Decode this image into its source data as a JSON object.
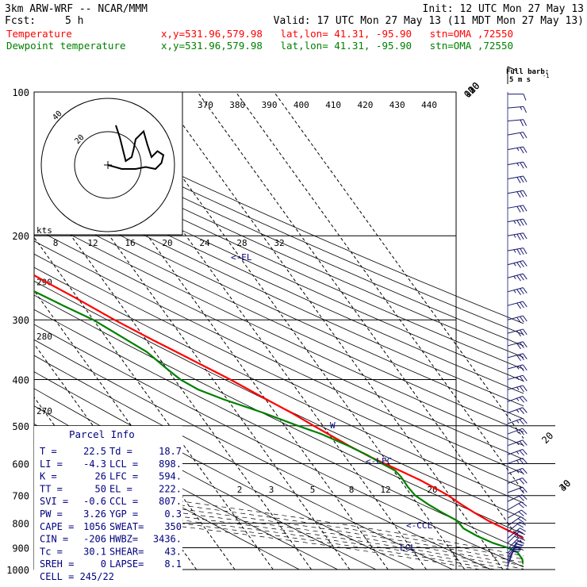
{
  "header": {
    "title": "3km ARW-WRF -- NCAR/MMM",
    "init": "Init: 12 UTC Mon 27 May 13",
    "fcst_label": "Fcst:",
    "fcst_value": "5 h",
    "valid": "Valid: 17 UTC Mon 27 May 13 (11 MDT Mon 27 May 13)"
  },
  "fields": [
    {
      "name": "Temperature",
      "info": "x,y=531.96,579.98   lat,lon= 41.31, -95.90   stn=OMA ,72550",
      "color": "#ff0000"
    },
    {
      "name": "Dewpoint temperature",
      "info": "x,y=531.96,579.98   lat,lon= 41.31, -95.90   stn=OMA ,72550",
      "color": "#008000"
    }
  ],
  "wind_legend": {
    "full_barb": "Full barb:",
    "units": "5 m s",
    "exponent": "-1"
  },
  "hodograph": {
    "units": "kts",
    "ring_labels": [
      "20",
      "40"
    ]
  },
  "parcel": {
    "title": "Parcel Info",
    "rows": [
      [
        "T   =",
        "22.5",
        "Td  =",
        "18.7"
      ],
      [
        "LI  =",
        "-4.3",
        "LCL =",
        "898."
      ],
      [
        "K   =",
        "26",
        "LFC =",
        "594."
      ],
      [
        "TT  =",
        "50",
        "EL  =",
        "222."
      ],
      [
        "SVI =",
        "-0.6",
        "CCL =",
        "807."
      ],
      [
        "PW  =",
        "3.26",
        "YGP =",
        "0.3"
      ],
      [
        "CAPE =",
        "1056",
        "SWEAT=",
        "350"
      ],
      [
        "CIN  =",
        "-206",
        "HWBZ=",
        "3436."
      ],
      [
        "Tc  =",
        "30.1",
        "SHEAR=",
        "43."
      ],
      [
        "SREH =",
        "0",
        "LAPSE=",
        "8.1"
      ]
    ],
    "cell": "CELL = 245/22"
  },
  "level_labels": {
    "el": "EL",
    "lfc": "LFC",
    "lcl": "LCL",
    "ccl": "CCL",
    "w": "W"
  },
  "chart_data": {
    "type": "line",
    "title": "",
    "xlabel": "",
    "ylabel": "",
    "y_scale": "log",
    "ylim": [
      1000,
      100
    ],
    "y_ticks": [
      100,
      200,
      300,
      400,
      500,
      600,
      700,
      800,
      900,
      1000
    ],
    "isotherms": [
      -80,
      -70,
      -60,
      -50,
      -40,
      -30,
      -20,
      -10,
      0,
      10,
      20,
      30,
      40
    ],
    "theta_labels": [
      {
        "p": 250,
        "v": "290"
      },
      {
        "p": 325,
        "v": "280"
      },
      {
        "p": 465,
        "v": "270"
      }
    ],
    "theta_e_labels": [
      "370",
      "380",
      "390",
      "400",
      "410",
      "420",
      "430",
      "440"
    ],
    "mixing_ratio_upper": [
      "8",
      "12",
      "16",
      "20",
      "24",
      "28",
      "32"
    ],
    "mixing_ratio_lower": [
      "2",
      "3",
      "5",
      "8",
      "12",
      "20"
    ],
    "series": [
      {
        "name": "Temperature",
        "color": "#ff0000",
        "points": [
          [
            1000,
            30.1
          ],
          [
            970,
            26.0
          ],
          [
            940,
            24.2
          ],
          [
            910,
            23.3
          ],
          [
            880,
            22.4
          ],
          [
            850,
            20.6
          ],
          [
            820,
            18.0
          ],
          [
            790,
            15.3
          ],
          [
            760,
            13.2
          ],
          [
            730,
            11.3
          ],
          [
            700,
            9.6
          ],
          [
            680,
            8.0
          ],
          [
            650,
            5.2
          ],
          [
            620,
            1.6
          ],
          [
            600,
            -1.0
          ],
          [
            580,
            -3.6
          ],
          [
            550,
            -7.0
          ],
          [
            520,
            -10.2
          ],
          [
            500,
            -12.4
          ],
          [
            470,
            -15.7
          ],
          [
            440,
            -19.8
          ],
          [
            400,
            -25.5
          ],
          [
            380,
            -28.9
          ],
          [
            350,
            -34.4
          ],
          [
            330,
            -38.4
          ],
          [
            300,
            -44.5
          ],
          [
            270,
            -50.5
          ],
          [
            250,
            -55.2
          ],
          [
            230,
            -60.0
          ],
          [
            215,
            -62.9
          ],
          [
            200,
            -63.2
          ],
          [
            190,
            -61.8
          ],
          [
            180,
            -62.5
          ],
          [
            165,
            -64.6
          ],
          [
            150,
            -66.5
          ],
          [
            140,
            -67.3
          ],
          [
            130,
            -70.5
          ],
          [
            120,
            -73.8
          ],
          [
            110,
            -77.2
          ],
          [
            100,
            -80.6
          ]
        ]
      },
      {
        "name": "Dewpoint temperature",
        "color": "#008000",
        "points": [
          [
            975,
            16.3
          ],
          [
            950,
            17.0
          ],
          [
            920,
            17.0
          ],
          [
            900,
            15.3
          ],
          [
            880,
            12.4
          ],
          [
            850,
            9.5
          ],
          [
            820,
            7.4
          ],
          [
            790,
            7.2
          ],
          [
            760,
            4.8
          ],
          [
            730,
            2.7
          ],
          [
            700,
            1.0
          ],
          [
            670,
            0.7
          ],
          [
            640,
            0.8
          ],
          [
            620,
            0.4
          ],
          [
            600,
            -1.7
          ],
          [
            575,
            -4.0
          ],
          [
            550,
            -7.2
          ],
          [
            520,
            -12.0
          ],
          [
            500,
            -16.5
          ],
          [
            470,
            -23.0
          ],
          [
            440,
            -31.0
          ],
          [
            420,
            -35.7
          ],
          [
            400,
            -38.5
          ],
          [
            380,
            -40.0
          ],
          [
            350,
            -42.1
          ],
          [
            320,
            -46.7
          ],
          [
            300,
            -50.0
          ],
          [
            280,
            -55.2
          ],
          [
            260,
            -60.5
          ],
          [
            250,
            -63.5
          ],
          [
            240,
            -64.0
          ],
          [
            230,
            -63.5
          ],
          [
            220,
            -63.2
          ],
          [
            210,
            -63.1
          ],
          [
            200,
            -62.4
          ],
          [
            185,
            -63.5
          ],
          [
            170,
            -67.6
          ],
          [
            155,
            -73.2
          ],
          [
            140,
            -80.8
          ],
          [
            125,
            -89.0
          ],
          [
            115,
            -92.9
          ],
          [
            100,
            -96.0
          ]
        ]
      }
    ],
    "parcel_path": [
      [
        898,
        19.3
      ],
      [
        850,
        16.6
      ],
      [
        800,
        13.9
      ],
      [
        700,
        8.6
      ],
      [
        594,
        -0.9
      ],
      [
        500,
        -9.5
      ],
      [
        400,
        -22.4
      ],
      [
        300,
        -40.8
      ],
      [
        222,
        -60.8
      ]
    ],
    "winds": [
      {
        "p": 985,
        "dir": 200,
        "kt": 10
      },
      {
        "p": 970,
        "dir": 205,
        "kt": 15
      },
      {
        "p": 955,
        "dir": 210,
        "kt": 20
      },
      {
        "p": 940,
        "dir": 215,
        "kt": 25
      },
      {
        "p": 925,
        "dir": 220,
        "kt": 25
      },
      {
        "p": 905,
        "dir": 225,
        "kt": 25
      },
      {
        "p": 880,
        "dir": 225,
        "kt": 25
      },
      {
        "p": 860,
        "dir": 230,
        "kt": 25
      },
      {
        "p": 835,
        "dir": 230,
        "kt": 20
      },
      {
        "p": 810,
        "dir": 235,
        "kt": 20
      },
      {
        "p": 780,
        "dir": 240,
        "kt": 20
      },
      {
        "p": 750,
        "dir": 240,
        "kt": 20
      },
      {
        "p": 720,
        "dir": 245,
        "kt": 20
      },
      {
        "p": 690,
        "dir": 250,
        "kt": 20
      },
      {
        "p": 660,
        "dir": 250,
        "kt": 20
      },
      {
        "p": 630,
        "dir": 250,
        "kt": 25
      },
      {
        "p": 600,
        "dir": 250,
        "kt": 25
      },
      {
        "p": 575,
        "dir": 250,
        "kt": 25
      },
      {
        "p": 550,
        "dir": 250,
        "kt": 25
      },
      {
        "p": 520,
        "dir": 250,
        "kt": 25
      },
      {
        "p": 495,
        "dir": 250,
        "kt": 25
      },
      {
        "p": 470,
        "dir": 250,
        "kt": 25
      },
      {
        "p": 445,
        "dir": 250,
        "kt": 25
      },
      {
        "p": 420,
        "dir": 255,
        "kt": 25
      },
      {
        "p": 400,
        "dir": 255,
        "kt": 25
      },
      {
        "p": 380,
        "dir": 255,
        "kt": 25
      },
      {
        "p": 360,
        "dir": 255,
        "kt": 30
      },
      {
        "p": 340,
        "dir": 255,
        "kt": 30
      },
      {
        "p": 320,
        "dir": 255,
        "kt": 30
      },
      {
        "p": 300,
        "dir": 255,
        "kt": 30
      },
      {
        "p": 280,
        "dir": 255,
        "kt": 30
      },
      {
        "p": 262,
        "dir": 255,
        "kt": 35
      },
      {
        "p": 245,
        "dir": 255,
        "kt": 35
      },
      {
        "p": 230,
        "dir": 255,
        "kt": 35
      },
      {
        "p": 215,
        "dir": 260,
        "kt": 35
      },
      {
        "p": 200,
        "dir": 260,
        "kt": 35
      },
      {
        "p": 187,
        "dir": 260,
        "kt": 35
      },
      {
        "p": 175,
        "dir": 260,
        "kt": 30
      },
      {
        "p": 163,
        "dir": 260,
        "kt": 30
      },
      {
        "p": 152,
        "dir": 260,
        "kt": 30
      },
      {
        "p": 142,
        "dir": 260,
        "kt": 25
      },
      {
        "p": 132,
        "dir": 260,
        "kt": 25
      },
      {
        "p": 123,
        "dir": 260,
        "kt": 20
      },
      {
        "p": 115,
        "dir": 265,
        "kt": 20
      },
      {
        "p": 108,
        "dir": 265,
        "kt": 15
      },
      {
        "p": 101,
        "dir": 270,
        "kt": 10
      }
    ],
    "hodograph_trace": [
      [
        0,
        0
      ],
      [
        7,
        -2
      ],
      [
        14,
        -2
      ],
      [
        19,
        -1
      ],
      [
        24,
        -2
      ],
      [
        27,
        1
      ],
      [
        28,
        5
      ],
      [
        25,
        7
      ],
      [
        22,
        4
      ],
      [
        20,
        10
      ],
      [
        18,
        17
      ],
      [
        14,
        13
      ],
      [
        13,
        8
      ],
      [
        12,
        4
      ],
      [
        9,
        2
      ],
      [
        8,
        6
      ],
      [
        6,
        14
      ],
      [
        4,
        20
      ]
    ]
  },
  "colors": {
    "isobar": "#000000",
    "temperature": "#ff0000",
    "dewpoint": "#008000",
    "wind": "#191970",
    "labels": "#000080"
  }
}
